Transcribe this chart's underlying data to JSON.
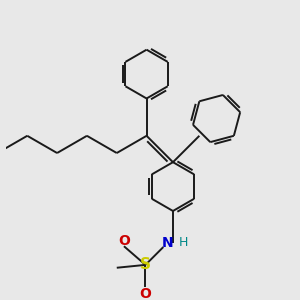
{
  "bg_color": "#e8e8e8",
  "line_color": "#1a1a1a",
  "S_color": "#cccc00",
  "N_color": "#0000cc",
  "O_color": "#cc0000",
  "H_color": "#008888",
  "line_width": 1.4,
  "figsize": [
    3.0,
    3.0
  ],
  "dpi": 100,
  "xlim": [
    0,
    10
  ],
  "ylim": [
    0,
    10
  ]
}
